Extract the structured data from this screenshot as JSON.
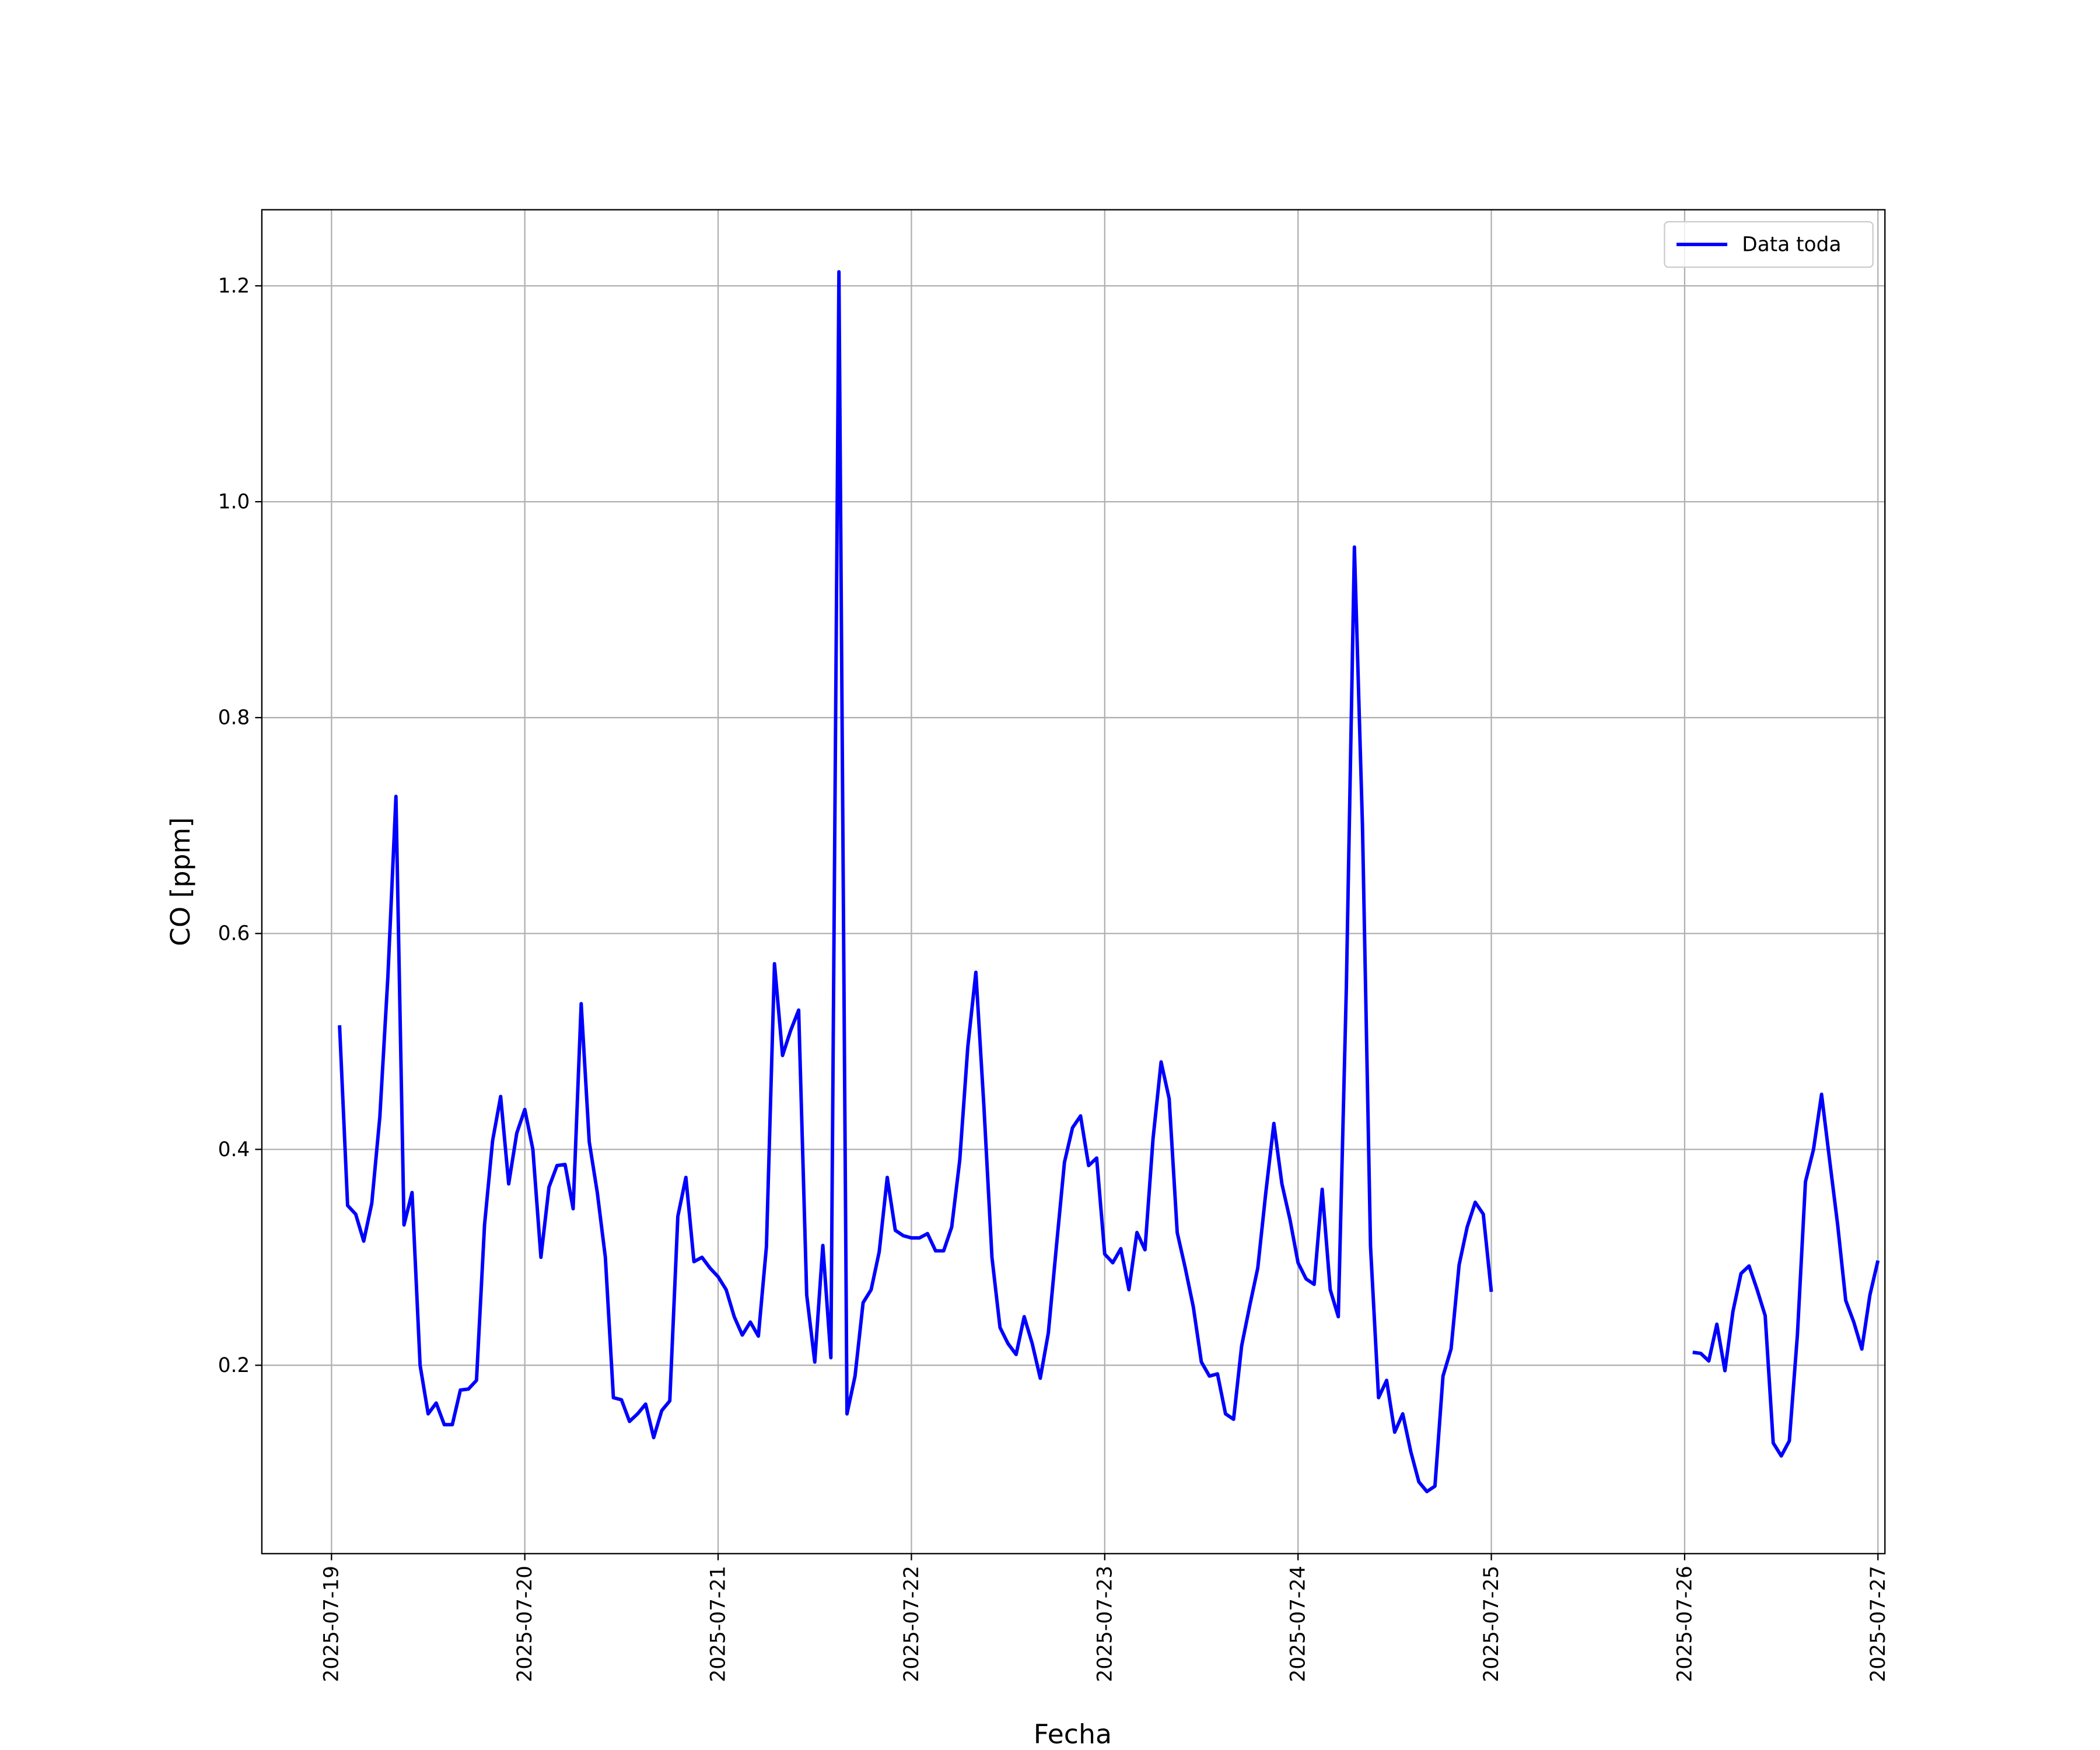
{
  "chart_data": {
    "type": "line",
    "xlabel": "Fecha",
    "ylabel": "CO [ppm]",
    "x": [
      "2025-07-19T01:00",
      "2025-07-19T02:00",
      "2025-07-19T03:00",
      "2025-07-19T04:00",
      "2025-07-19T05:00",
      "2025-07-19T06:00",
      "2025-07-19T07:00",
      "2025-07-19T08:00",
      "2025-07-19T09:00",
      "2025-07-19T10:00",
      "2025-07-19T11:00",
      "2025-07-19T12:00",
      "2025-07-19T13:00",
      "2025-07-19T14:00",
      "2025-07-19T15:00",
      "2025-07-19T16:00",
      "2025-07-19T17:00",
      "2025-07-19T18:00",
      "2025-07-19T19:00",
      "2025-07-19T20:00",
      "2025-07-19T21:00",
      "2025-07-19T22:00",
      "2025-07-19T23:00",
      "2025-07-20T00:00",
      "2025-07-20T01:00",
      "2025-07-20T02:00",
      "2025-07-20T03:00",
      "2025-07-20T04:00",
      "2025-07-20T05:00",
      "2025-07-20T06:00",
      "2025-07-20T07:00",
      "2025-07-20T08:00",
      "2025-07-20T09:00",
      "2025-07-20T10:00",
      "2025-07-20T11:00",
      "2025-07-20T12:00",
      "2025-07-20T13:00",
      "2025-07-20T14:00",
      "2025-07-20T15:00",
      "2025-07-20T16:00",
      "2025-07-20T17:00",
      "2025-07-20T18:00",
      "2025-07-20T19:00",
      "2025-07-20T20:00",
      "2025-07-20T21:00",
      "2025-07-20T22:00",
      "2025-07-20T23:00",
      "2025-07-21T00:00",
      "2025-07-21T01:00",
      "2025-07-21T02:00",
      "2025-07-21T03:00",
      "2025-07-21T04:00",
      "2025-07-21T05:00",
      "2025-07-21T06:00",
      "2025-07-21T07:00",
      "2025-07-21T08:00",
      "2025-07-21T09:00",
      "2025-07-21T10:00",
      "2025-07-21T11:00",
      "2025-07-21T12:00",
      "2025-07-21T13:00",
      "2025-07-21T14:00",
      "2025-07-21T15:00",
      "2025-07-21T16:00",
      "2025-07-21T17:00",
      "2025-07-21T18:00",
      "2025-07-21T19:00",
      "2025-07-21T20:00",
      "2025-07-21T21:00",
      "2025-07-21T22:00",
      "2025-07-21T23:00",
      "2025-07-22T00:00",
      "2025-07-22T01:00",
      "2025-07-22T02:00",
      "2025-07-22T03:00",
      "2025-07-22T04:00",
      "2025-07-22T05:00",
      "2025-07-22T06:00",
      "2025-07-22T07:00",
      "2025-07-22T08:00",
      "2025-07-22T09:00",
      "2025-07-22T10:00",
      "2025-07-22T11:00",
      "2025-07-22T12:00",
      "2025-07-22T13:00",
      "2025-07-22T14:00",
      "2025-07-22T15:00",
      "2025-07-22T16:00",
      "2025-07-22T17:00",
      "2025-07-22T18:00",
      "2025-07-22T19:00",
      "2025-07-22T20:00",
      "2025-07-22T21:00",
      "2025-07-22T22:00",
      "2025-07-22T23:00",
      "2025-07-23T00:00",
      "2025-07-23T01:00",
      "2025-07-23T02:00",
      "2025-07-23T03:00",
      "2025-07-23T04:00",
      "2025-07-23T05:00",
      "2025-07-23T06:00",
      "2025-07-23T07:00",
      "2025-07-23T08:00",
      "2025-07-23T09:00",
      "2025-07-23T10:00",
      "2025-07-23T11:00",
      "2025-07-23T12:00",
      "2025-07-23T13:00",
      "2025-07-23T14:00",
      "2025-07-23T15:00",
      "2025-07-23T16:00",
      "2025-07-23T17:00",
      "2025-07-23T18:00",
      "2025-07-23T19:00",
      "2025-07-23T20:00",
      "2025-07-23T21:00",
      "2025-07-23T22:00",
      "2025-07-23T23:00",
      "2025-07-24T00:00",
      "2025-07-24T01:00",
      "2025-07-24T02:00",
      "2025-07-24T03:00",
      "2025-07-24T04:00",
      "2025-07-24T05:00",
      "2025-07-24T06:00",
      "2025-07-24T07:00",
      "2025-07-24T08:00",
      "2025-07-24T09:00",
      "2025-07-24T10:00",
      "2025-07-24T11:00",
      "2025-07-24T12:00",
      "2025-07-24T13:00",
      "2025-07-24T14:00",
      "2025-07-24T15:00",
      "2025-07-24T16:00",
      "2025-07-24T17:00",
      "2025-07-24T18:00",
      "2025-07-24T19:00",
      "2025-07-24T20:00",
      "2025-07-24T21:00",
      "2025-07-24T22:00",
      "2025-07-24T23:00",
      "2025-07-25T00:00",
      "2025-07-25T01:00",
      "2025-07-25T02:00",
      "2025-07-25T03:00",
      "2025-07-25T04:00",
      "2025-07-25T05:00",
      "2025-07-25T06:00",
      "2025-07-25T07:00",
      "2025-07-25T08:00",
      "2025-07-25T09:00",
      "2025-07-25T10:00",
      "2025-07-25T11:00",
      "2025-07-25T12:00",
      "2025-07-25T13:00",
      "2025-07-25T14:00",
      "2025-07-25T15:00",
      "2025-07-25T16:00",
      "2025-07-25T17:00",
      "2025-07-25T18:00",
      "2025-07-25T19:00",
      "2025-07-25T20:00",
      "2025-07-25T21:00",
      "2025-07-25T22:00",
      "2025-07-25T23:00",
      "2025-07-26T00:00",
      "2025-07-26T01:00",
      "2025-07-26T02:00",
      "2025-07-26T03:00",
      "2025-07-26T04:00",
      "2025-07-26T05:00",
      "2025-07-26T06:00",
      "2025-07-26T07:00",
      "2025-07-26T08:00",
      "2025-07-26T09:00",
      "2025-07-26T10:00",
      "2025-07-26T11:00",
      "2025-07-26T12:00",
      "2025-07-26T13:00",
      "2025-07-26T14:00",
      "2025-07-26T15:00",
      "2025-07-26T16:00",
      "2025-07-26T17:00",
      "2025-07-26T18:00",
      "2025-07-26T19:00",
      "2025-07-26T20:00",
      "2025-07-26T21:00",
      "2025-07-26T22:00",
      "2025-07-26T23:00",
      "2025-07-27T00:00"
    ],
    "series": [
      {
        "name": "Data toda",
        "color": "#0000ff",
        "values": [
          0.515,
          0.348,
          0.34,
          0.315,
          0.35,
          0.43,
          0.56,
          0.727,
          0.33,
          0.36,
          0.2,
          0.155,
          0.165,
          0.145,
          0.145,
          0.177,
          0.178,
          0.186,
          0.33,
          0.408,
          0.449,
          0.368,
          0.415,
          0.437,
          0.4,
          0.3,
          0.365,
          0.385,
          0.386,
          0.345,
          0.535,
          0.407,
          0.36,
          0.3,
          0.17,
          0.168,
          0.148,
          0.155,
          0.164,
          0.133,
          0.158,
          0.167,
          0.338,
          0.374,
          0.296,
          0.3,
          0.29,
          0.282,
          0.27,
          0.245,
          0.228,
          0.24,
          0.227,
          0.31,
          0.572,
          0.487,
          0.51,
          0.529,
          0.265,
          0.203,
          0.311,
          0.207,
          1.213,
          0.155,
          0.19,
          0.258,
          0.27,
          0.305,
          0.374,
          0.325,
          0.32,
          0.318,
          0.318,
          0.322,
          0.306,
          0.306,
          0.328,
          0.39,
          0.495,
          0.564,
          0.44,
          0.3,
          0.235,
          0.22,
          0.21,
          0.245,
          0.22,
          0.188,
          0.23,
          0.31,
          0.388,
          0.42,
          0.431,
          0.385,
          0.392,
          0.303,
          0.295,
          0.308,
          0.27,
          0.323,
          0.307,
          0.41,
          0.481,
          0.447,
          0.323,
          0.29,
          0.254,
          0.203,
          0.19,
          0.192,
          0.155,
          0.15,
          0.218,
          0.255,
          0.29,
          0.36,
          0.424,
          0.368,
          0.335,
          0.295,
          0.28,
          0.275,
          0.363,
          0.27,
          0.245,
          0.55,
          0.958,
          0.7,
          0.31,
          0.17,
          0.186,
          0.138,
          0.155,
          0.12,
          0.092,
          0.083,
          0.088,
          0.19,
          0.215,
          0.293,
          0.328,
          0.351,
          0.34,
          0.268,
          null,
          null,
          null,
          null,
          null,
          null,
          null,
          null,
          null,
          null,
          null,
          null,
          null,
          null,
          null,
          null,
          null,
          null,
          null,
          null,
          null,
          null,
          null,
          null,
          0.212,
          0.211,
          0.204,
          0.238,
          0.195,
          0.25,
          0.285,
          0.292,
          0.27,
          0.246,
          0.128,
          0.116,
          0.13,
          0.228,
          0.37,
          0.4,
          0.451,
          0.39,
          0.33,
          0.26,
          0.24,
          0.215,
          0.265,
          0.297
        ]
      }
    ],
    "xlim": [
      "2025-07-18T15:21",
      "2025-07-27T00:52"
    ],
    "xticks": [
      "2025-07-19",
      "2025-07-20",
      "2025-07-21",
      "2025-07-22",
      "2025-07-23",
      "2025-07-24",
      "2025-07-25",
      "2025-07-26",
      "2025-07-27"
    ],
    "ylim": [
      0.0255,
      1.2705
    ],
    "yticks": [
      0.2,
      0.4,
      0.6,
      0.8,
      {
        "value": 1,
        "label": "1.0"
      },
      1.2
    ],
    "grid": true,
    "legend": "upper right"
  }
}
